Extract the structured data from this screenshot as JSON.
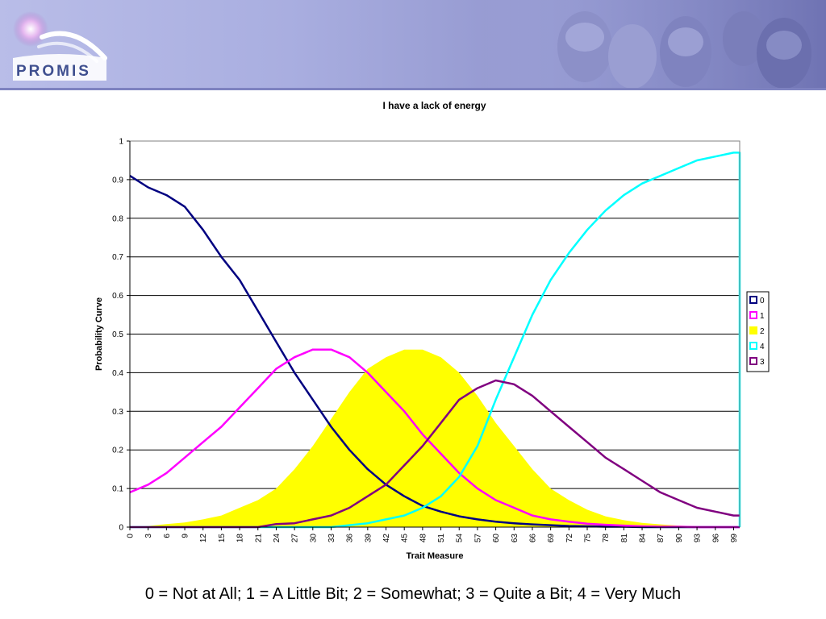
{
  "brand": {
    "logo_text": "PROMIS"
  },
  "caption": "0 = Not at All; 1 = A Little Bit; 2 = Somewhat; 3 = Quite a Bit; 4 = Very Much",
  "colors": {
    "banner": "#a9aee0",
    "series_0": "#000080",
    "series_1": "#ff00ff",
    "series_2": "#ffff00",
    "series_4": "#00ffff",
    "series_3": "#800080"
  },
  "chart_data": {
    "type": "line",
    "title": "I have a lack of energy",
    "xlabel": "Trait Measure",
    "ylabel": "Probability Curve",
    "xlim": [
      0,
      100
    ],
    "ylim": [
      0,
      1
    ],
    "yticks": [
      "0",
      "0.1",
      "0.2",
      "0.3",
      "0.4",
      "0.5",
      "0.6",
      "0.7",
      "0.8",
      "0.9",
      "1"
    ],
    "xticks": [
      "0",
      "3",
      "6",
      "9",
      "12",
      "15",
      "18",
      "21",
      "24",
      "27",
      "30",
      "33",
      "36",
      "39",
      "42",
      "45",
      "48",
      "51",
      "54",
      "57",
      "60",
      "63",
      "66",
      "69",
      "72",
      "75",
      "78",
      "81",
      "84",
      "87",
      "90",
      "93",
      "96",
      "99"
    ],
    "grid": "horizontal",
    "legend_position": "right",
    "x": [
      0,
      3,
      6,
      9,
      12,
      15,
      18,
      21,
      24,
      27,
      30,
      33,
      36,
      39,
      42,
      45,
      48,
      51,
      54,
      57,
      60,
      63,
      66,
      69,
      72,
      75,
      78,
      81,
      84,
      87,
      90,
      93,
      96,
      99,
      100
    ],
    "series": [
      {
        "name": "0",
        "color": "#000080",
        "fill": false,
        "values": [
          0.91,
          0.88,
          0.86,
          0.83,
          0.77,
          0.7,
          0.64,
          0.56,
          0.48,
          0.4,
          0.33,
          0.26,
          0.2,
          0.15,
          0.11,
          0.08,
          0.055,
          0.04,
          0.028,
          0.02,
          0.014,
          0.01,
          0.007,
          0.005,
          0.003,
          0.002,
          0.001,
          0.001,
          0,
          0,
          0,
          0,
          0,
          0,
          0
        ]
      },
      {
        "name": "1",
        "color": "#ff00ff",
        "fill": false,
        "values": [
          0.09,
          0.11,
          0.14,
          0.18,
          0.22,
          0.26,
          0.31,
          0.36,
          0.41,
          0.44,
          0.46,
          0.46,
          0.44,
          0.4,
          0.35,
          0.3,
          0.24,
          0.19,
          0.14,
          0.1,
          0.07,
          0.05,
          0.03,
          0.02,
          0.014,
          0.009,
          0.006,
          0.004,
          0.002,
          0.001,
          0.001,
          0,
          0,
          0,
          0
        ]
      },
      {
        "name": "2",
        "color": "#ffff00",
        "fill": true,
        "values": [
          0,
          0.003,
          0.008,
          0.012,
          0.02,
          0.03,
          0.05,
          0.07,
          0.1,
          0.15,
          0.21,
          0.28,
          0.35,
          0.41,
          0.44,
          0.46,
          0.46,
          0.44,
          0.4,
          0.34,
          0.27,
          0.21,
          0.15,
          0.1,
          0.07,
          0.045,
          0.028,
          0.018,
          0.011,
          0.007,
          0.004,
          0.002,
          0.001,
          0.001,
          0
        ]
      },
      {
        "name": "4",
        "color": "#00ffff",
        "fill": false,
        "values": [
          0,
          0,
          0,
          0,
          0,
          0,
          0,
          0,
          0,
          0,
          0,
          0,
          0.005,
          0.01,
          0.02,
          0.03,
          0.05,
          0.08,
          0.13,
          0.21,
          0.33,
          0.44,
          0.55,
          0.64,
          0.71,
          0.77,
          0.82,
          0.86,
          0.89,
          0.91,
          0.93,
          0.95,
          0.96,
          0.97,
          0.97
        ]
      },
      {
        "name": "3",
        "color": "#800080",
        "fill": false,
        "values": [
          0,
          0,
          0,
          0,
          0,
          0,
          0,
          0,
          0.008,
          0.01,
          0.02,
          0.03,
          0.05,
          0.08,
          0.11,
          0.16,
          0.21,
          0.27,
          0.33,
          0.36,
          0.38,
          0.37,
          0.34,
          0.3,
          0.26,
          0.22,
          0.18,
          0.15,
          0.12,
          0.09,
          0.07,
          0.05,
          0.04,
          0.03,
          0.03
        ]
      }
    ]
  }
}
